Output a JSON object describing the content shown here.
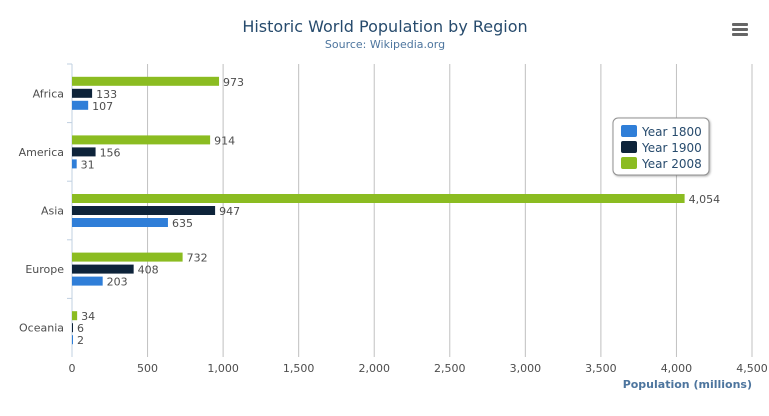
{
  "chart_data": {
    "type": "bar",
    "orientation": "horizontal",
    "title": "Historic World Population by Region",
    "subtitle": "Source: Wikipedia.org",
    "xlabel": "Population (millions)",
    "ylabel": "",
    "categories": [
      "Africa",
      "America",
      "Asia",
      "Europe",
      "Oceania"
    ],
    "series": [
      {
        "name": "Year 1800",
        "color": "#2f7ed8",
        "values": [
          107,
          31,
          635,
          203,
          2
        ]
      },
      {
        "name": "Year 1900",
        "color": "#0d233a",
        "values": [
          133,
          156,
          947,
          408,
          6
        ]
      },
      {
        "name": "Year 2008",
        "color": "#8bbc21",
        "values": [
          973,
          914,
          4054,
          732,
          34
        ]
      }
    ],
    "xlim": [
      0,
      4500
    ],
    "ticks": [
      "0",
      "500",
      "1,000",
      "1,500",
      "2,000",
      "2,500",
      "3,000",
      "3,500",
      "4,000",
      "4,500"
    ],
    "grid": true,
    "legend": "right, floating"
  },
  "menu_icon": "hamburger-menu-icon"
}
